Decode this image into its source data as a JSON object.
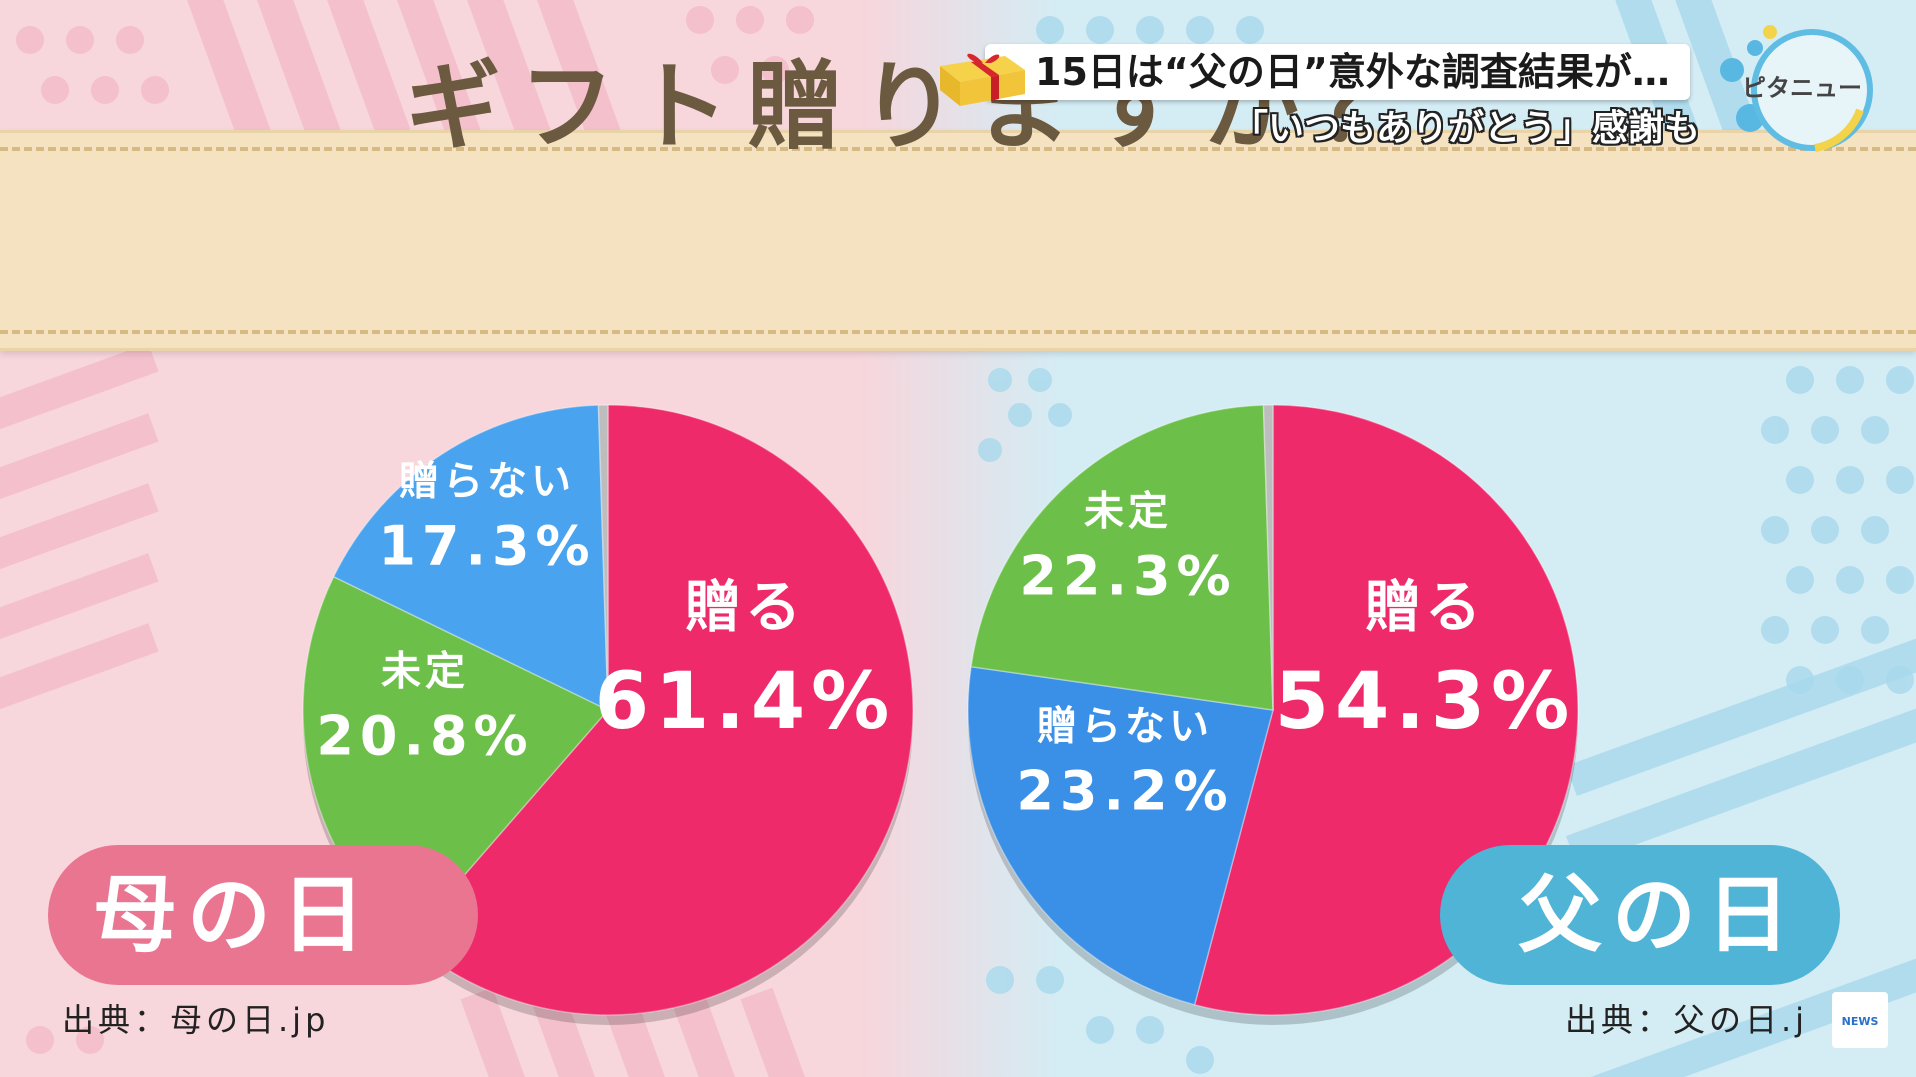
{
  "header": {
    "caption": "15日は“父の日”意外な調査結果が…",
    "subcaption": "「いつもありがとう」感謝も",
    "logo": "ピタニュー"
  },
  "banner": {
    "title": "ギフト贈りますか？"
  },
  "chart_data": [
    {
      "type": "pie",
      "title": "",
      "group": "母の日",
      "source": "出典：母の日.jp",
      "slices": [
        {
          "label": "贈る",
          "value": 61.4,
          "value_text": "61.4%",
          "color": "#ee2a6b"
        },
        {
          "label": "未定",
          "value": 20.8,
          "value_text": "20.8%",
          "color": "#6cc04a"
        },
        {
          "label": "贈らない",
          "value": 17.3,
          "value_text": "17.3%",
          "color": "#4aa3ee"
        },
        {
          "label": "",
          "value": 0.5,
          "value_text": "",
          "color": "#bdbdbd"
        }
      ]
    },
    {
      "type": "pie",
      "title": "",
      "group": "父の日",
      "source": "出典：父の日.j",
      "slices": [
        {
          "label": "贈る",
          "value": 54.3,
          "value_text": "54.3%",
          "color": "#ee2a6b"
        },
        {
          "label": "贈らない",
          "value": 23.2,
          "value_text": "23.2%",
          "color": "#3a8fe6"
        },
        {
          "label": "未定",
          "value": 22.3,
          "value_text": "22.3%",
          "color": "#6cc04a"
        },
        {
          "label": "",
          "value": 0.5,
          "value_text": "",
          "color": "#bdbdbd"
        }
      ]
    }
  ],
  "badge": {
    "text": "NEWS"
  }
}
